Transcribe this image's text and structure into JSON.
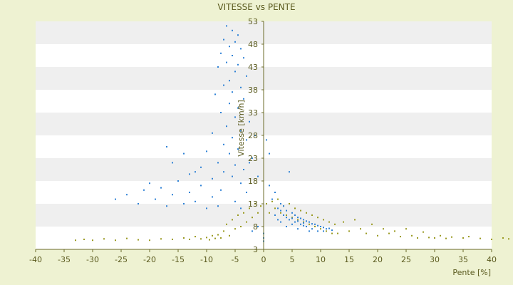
{
  "chart_data": {
    "type": "scatter",
    "title": "VITESSE vs PENTE",
    "xlabel": "Pente [%]",
    "ylabel": "Vitesse [km/h]",
    "xlim": [
      -40,
      40
    ],
    "ylim": [
      3,
      53
    ],
    "x_ticks": [
      -40,
      -35,
      -30,
      -25,
      -20,
      -15,
      -10,
      -5,
      0,
      5,
      10,
      15,
      20,
      25,
      30,
      35,
      40
    ],
    "y_ticks": [
      3,
      8,
      13,
      18,
      23,
      28,
      33,
      38,
      43,
      48,
      53
    ],
    "grid": "horizontal-bands",
    "legend": "none",
    "colors": {
      "background": "#eef2d2",
      "band_light": "#ffffff",
      "band_dark": "#efefef",
      "axis": "#6b6b2a",
      "text": "#5a5a1e"
    },
    "series": [
      {
        "color": "#9a9a22",
        "points": [
          [
            -33,
            5
          ],
          [
            -31.5,
            5.2
          ],
          [
            -30,
            5
          ],
          [
            -28,
            5.3
          ],
          [
            -26,
            5
          ],
          [
            -24,
            5.4
          ],
          [
            -22,
            5.1
          ],
          [
            -20,
            5
          ],
          [
            -18,
            5.3
          ],
          [
            -16,
            5.2
          ],
          [
            -14,
            5.5
          ],
          [
            -13,
            5.2
          ],
          [
            -12,
            5.8
          ],
          [
            -11,
            5.3
          ],
          [
            -10,
            5.6
          ],
          [
            -9.5,
            5.1
          ],
          [
            -9,
            6
          ],
          [
            -8.5,
            5.4
          ],
          [
            -8,
            6.2
          ],
          [
            -7.5,
            5.5
          ],
          [
            -7,
            7
          ],
          [
            -6.5,
            8.5
          ],
          [
            -6,
            6
          ],
          [
            -5.5,
            9.5
          ],
          [
            -5,
            7.5
          ],
          [
            -4.5,
            10.5
          ],
          [
            -4,
            8
          ],
          [
            -3.5,
            11
          ],
          [
            -3,
            9
          ],
          [
            -2.5,
            12
          ],
          [
            -2,
            10
          ],
          [
            -1.5,
            13
          ],
          [
            -1,
            11
          ],
          [
            -0.5,
            12.5
          ],
          [
            0.5,
            13
          ],
          [
            1,
            11
          ],
          [
            1.5,
            13.5
          ],
          [
            2,
            12
          ],
          [
            2.5,
            14
          ],
          [
            3,
            11
          ],
          [
            3.5,
            12.5
          ],
          [
            4,
            10.5
          ],
          [
            4.5,
            13
          ],
          [
            5,
            10
          ],
          [
            5.5,
            12
          ],
          [
            6,
            9.5
          ],
          [
            6.5,
            11.5
          ],
          [
            7,
            9
          ],
          [
            7.5,
            11
          ],
          [
            8,
            8.5
          ],
          [
            8.5,
            10.5
          ],
          [
            9,
            8
          ],
          [
            9.5,
            10
          ],
          [
            10,
            7.5
          ],
          [
            10.5,
            9.5
          ],
          [
            11,
            7
          ],
          [
            11.5,
            9
          ],
          [
            12,
            6.5
          ],
          [
            12.5,
            8.5
          ],
          [
            13,
            6.5
          ],
          [
            14,
            9
          ],
          [
            15,
            7
          ],
          [
            16,
            9.5
          ],
          [
            17,
            7.5
          ],
          [
            18,
            6.5
          ],
          [
            19,
            8.5
          ],
          [
            20,
            6
          ],
          [
            21,
            7.5
          ],
          [
            22,
            6.5
          ],
          [
            23,
            7
          ],
          [
            24,
            5.8
          ],
          [
            25,
            7.5
          ],
          [
            26,
            6
          ],
          [
            27,
            5.5
          ],
          [
            28,
            6.8
          ],
          [
            29,
            5.6
          ],
          [
            30,
            5.5
          ],
          [
            31,
            6
          ],
          [
            32,
            5.4
          ],
          [
            33,
            5.7
          ],
          [
            35,
            5.5
          ],
          [
            36,
            5.8
          ],
          [
            38,
            5.4
          ],
          [
            40,
            5.2
          ],
          [
            42,
            5.5
          ],
          [
            43,
            5.3
          ]
        ]
      },
      {
        "color": "#2f82d6",
        "points": [
          [
            -6.5,
            52
          ],
          [
            -5.5,
            51
          ],
          [
            -4.5,
            50
          ],
          [
            -7,
            49
          ],
          [
            -5,
            48.5
          ],
          [
            -6,
            47.5
          ],
          [
            -4,
            47
          ],
          [
            -7.5,
            46
          ],
          [
            -5.5,
            45.5
          ],
          [
            -3.5,
            45
          ],
          [
            -6.5,
            44
          ],
          [
            -4.5,
            43.5
          ],
          [
            -8,
            43
          ],
          [
            -5,
            42
          ],
          [
            -3,
            41
          ],
          [
            -6,
            40
          ],
          [
            -7,
            39
          ],
          [
            -4,
            38.5
          ],
          [
            -5.5,
            37.5
          ],
          [
            -8.5,
            37
          ],
          [
            -3.5,
            36
          ],
          [
            -6,
            35
          ],
          [
            -4.5,
            34
          ],
          [
            -7.5,
            33
          ],
          [
            -5,
            32
          ],
          [
            -2.5,
            31
          ],
          [
            -6.5,
            30
          ],
          [
            -4,
            29
          ],
          [
            -9,
            28.5
          ],
          [
            -5.5,
            27.5
          ],
          [
            -3,
            27
          ],
          [
            -7,
            26
          ],
          [
            -4.5,
            25
          ],
          [
            -10,
            24.5
          ],
          [
            -6,
            24
          ],
          [
            -2,
            23
          ],
          [
            -8,
            22
          ],
          [
            -5,
            21.5
          ],
          [
            -11,
            21
          ],
          [
            -3.5,
            20.5
          ],
          [
            -7,
            20
          ],
          [
            -13,
            19.5
          ],
          [
            -5.5,
            19
          ],
          [
            -9,
            18.5
          ],
          [
            -15,
            18
          ],
          [
            -4,
            17.5
          ],
          [
            -11,
            17
          ],
          [
            -18,
            16.5
          ],
          [
            -7.5,
            16
          ],
          [
            -21,
            16
          ],
          [
            -13,
            15.5
          ],
          [
            -3,
            15.5
          ],
          [
            -24,
            15
          ],
          [
            -16,
            15
          ],
          [
            -9,
            14.5
          ],
          [
            -26,
            14
          ],
          [
            -19,
            14
          ],
          [
            -12,
            13.5
          ],
          [
            -5,
            13.5
          ],
          [
            -22,
            13
          ],
          [
            -14,
            13
          ],
          [
            -17,
            12.5
          ],
          [
            -8,
            12.5
          ],
          [
            -10,
            12
          ],
          [
            -4,
            12
          ],
          [
            -16,
            22
          ],
          [
            -14,
            24
          ],
          [
            -17,
            25.5
          ],
          [
            -12,
            20
          ],
          [
            -20,
            17.5
          ],
          [
            -1.5,
            28
          ],
          [
            0.5,
            27
          ],
          [
            -2.5,
            22
          ],
          [
            1,
            24
          ],
          [
            -1,
            19
          ],
          [
            4.5,
            20
          ],
          [
            1,
            17
          ],
          [
            2,
            15.5
          ],
          [
            1.5,
            14
          ],
          [
            3,
            13
          ],
          [
            2.5,
            12
          ],
          [
            4,
            11.5
          ],
          [
            3.5,
            10.5
          ],
          [
            5,
            11
          ],
          [
            4.5,
            9.5
          ],
          [
            6,
            10
          ],
          [
            5.5,
            9
          ],
          [
            7,
            9.5
          ],
          [
            6.5,
            8.5
          ],
          [
            8,
            9
          ],
          [
            7.5,
            8
          ],
          [
            9,
            8.5
          ],
          [
            8.5,
            7.5
          ],
          [
            10,
            8
          ],
          [
            9.5,
            7
          ],
          [
            11,
            7.5
          ],
          [
            10.5,
            7
          ],
          [
            12,
            7.2
          ],
          [
            3,
            9
          ],
          [
            4,
            8
          ],
          [
            5,
            8.5
          ],
          [
            6,
            7.5
          ],
          [
            7,
            8.2
          ],
          [
            8,
            7
          ],
          [
            2,
            10.5
          ],
          [
            3,
            11.5
          ],
          [
            4,
            10
          ],
          [
            5,
            9.8
          ],
          [
            6,
            9.2
          ],
          [
            7,
            8.8
          ],
          [
            3.5,
            12.5
          ],
          [
            2.5,
            9.5
          ],
          [
            5.5,
            10.5
          ],
          [
            6.5,
            9.8
          ],
          [
            7.5,
            9.2
          ],
          [
            8.5,
            8.6
          ],
          [
            9.5,
            8.2
          ],
          [
            10.5,
            7.8
          ],
          [
            11.5,
            7.6
          ],
          [
            0,
            5.5
          ],
          [
            0,
            6.5
          ],
          [
            0,
            4.8
          ],
          [
            -2,
            7
          ],
          [
            -1,
            8
          ]
        ]
      }
    ]
  }
}
